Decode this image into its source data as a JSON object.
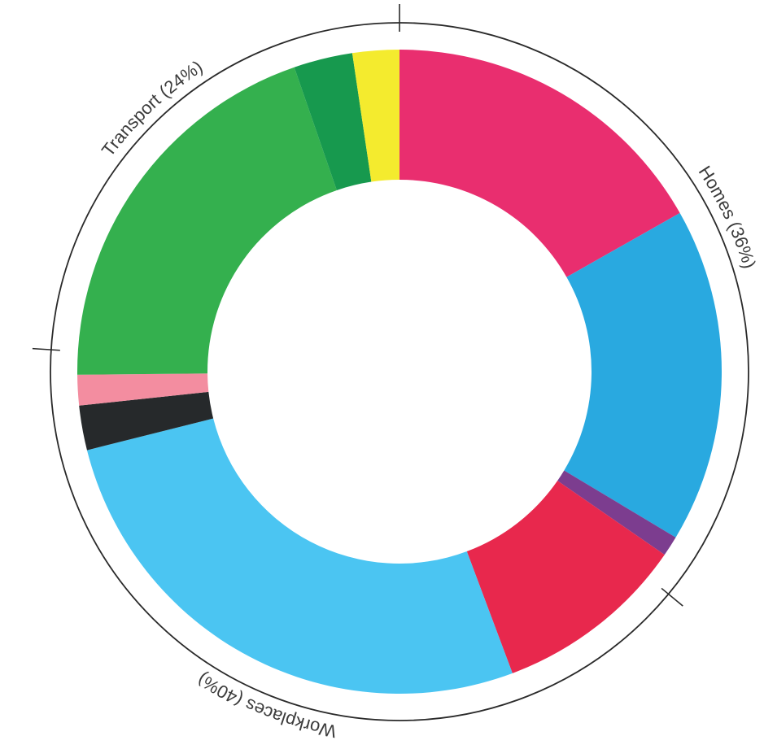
{
  "chart_data": {
    "type": "pie",
    "title": "",
    "slices": [
      {
        "value": 16.5,
        "color": "#E92E6F"
      },
      {
        "value": 16.5,
        "color": "#29A9E0"
      },
      {
        "value": 1.0,
        "color": "#7C3D8F"
      },
      {
        "value": 9.5,
        "color": "#E8284D"
      },
      {
        "value": 26.3,
        "color": "#4BC5F2"
      },
      {
        "value": 2.2,
        "color": "#26292B"
      },
      {
        "value": 1.5,
        "color": "#F38DA0"
      },
      {
        "value": 19.5,
        "color": "#34B04E"
      },
      {
        "value": 2.9,
        "color": "#17994E"
      },
      {
        "value": 2.3,
        "color": "#F4EB2E"
      }
    ],
    "groups": [
      {
        "label": "Homes (36%)",
        "share": 36
      },
      {
        "label": "Workplaces (40%)",
        "share": 40
      },
      {
        "label": "Transport (24%)",
        "share": 24
      }
    ],
    "colors": {
      "outer_ring": "#2a2a2a",
      "label_text": "#3b3b3b"
    }
  }
}
